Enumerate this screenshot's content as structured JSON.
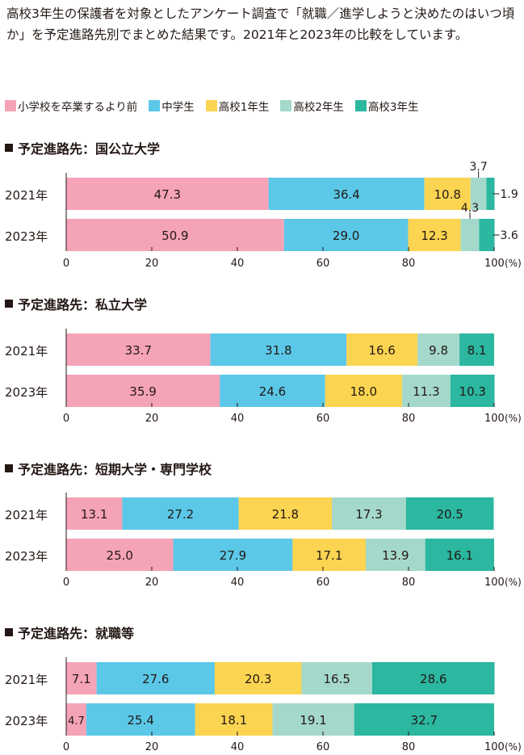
{
  "intro": "高校3年生の保護者を対象としたアンケート調査で「就職／進学しようと決めたのはいつ頃か」を予定進路先別でまとめた結果です。2021年と2023年の比較をしています。",
  "legend": [
    {
      "name": "小学校を卒業するより前",
      "color": "#f5a3b7"
    },
    {
      "name": "中学生",
      "color": "#5bc8e8"
    },
    {
      "name": "高校1年生",
      "color": "#fbd451"
    },
    {
      "name": "高校2年生",
      "color": "#a4d8cb"
    },
    {
      "name": "高校3年生",
      "color": "#2bb7a0"
    }
  ],
  "axis": {
    "ticks": [
      0,
      20,
      40,
      60,
      80,
      100
    ],
    "unit": "(%)",
    "xlim": [
      0,
      100
    ]
  },
  "chart_data": [
    {
      "type": "bar",
      "stacked": true,
      "orientation": "horizontal",
      "title": "予定進路先：国公立大学",
      "categories": [
        "2021年",
        "2023年"
      ],
      "series": [
        {
          "name": "小学校を卒業するより前",
          "values": [
            47.3,
            50.9
          ]
        },
        {
          "name": "中学生",
          "values": [
            36.4,
            29.0
          ]
        },
        {
          "name": "高校1年生",
          "values": [
            10.8,
            12.3
          ]
        },
        {
          "name": "高校2年生",
          "values": [
            3.7,
            4.3
          ]
        },
        {
          "name": "高校3年生",
          "values": [
            1.9,
            3.6
          ]
        }
      ],
      "labels": [
        [
          "47.3",
          "36.4",
          "10.8",
          "3.7",
          "1.9"
        ],
        [
          "50.9",
          "29.0",
          "12.3",
          "4.3",
          "3.6"
        ]
      ]
    },
    {
      "type": "bar",
      "stacked": true,
      "orientation": "horizontal",
      "title": "予定進路先：私立大学",
      "categories": [
        "2021年",
        "2023年"
      ],
      "series": [
        {
          "name": "小学校を卒業するより前",
          "values": [
            33.7,
            35.9
          ]
        },
        {
          "name": "中学生",
          "values": [
            31.8,
            24.6
          ]
        },
        {
          "name": "高校1年生",
          "values": [
            16.6,
            18.0
          ]
        },
        {
          "name": "高校2年生",
          "values": [
            9.8,
            11.3
          ]
        },
        {
          "name": "高校3年生",
          "values": [
            8.1,
            10.3
          ]
        }
      ],
      "labels": [
        [
          "33.7",
          "31.8",
          "16.6",
          "9.8",
          "8.1"
        ],
        [
          "35.9",
          "24.6",
          "18.0",
          "11.3",
          "10.3"
        ]
      ]
    },
    {
      "type": "bar",
      "stacked": true,
      "orientation": "horizontal",
      "title": "予定進路先：短期大学・専門学校",
      "categories": [
        "2021年",
        "2023年"
      ],
      "series": [
        {
          "name": "小学校を卒業するより前",
          "values": [
            13.1,
            25.0
          ]
        },
        {
          "name": "中学生",
          "values": [
            27.2,
            27.9
          ]
        },
        {
          "name": "高校1年生",
          "values": [
            21.8,
            17.1
          ]
        },
        {
          "name": "高校2年生",
          "values": [
            17.3,
            13.9
          ]
        },
        {
          "name": "高校3年生",
          "values": [
            20.5,
            16.1
          ]
        }
      ],
      "labels": [
        [
          "13.1",
          "27.2",
          "21.8",
          "17.3",
          "20.5"
        ],
        [
          "25.0",
          "27.9",
          "17.1",
          "13.9",
          "16.1"
        ]
      ]
    },
    {
      "type": "bar",
      "stacked": true,
      "orientation": "horizontal",
      "title": "予定進路先：就職等",
      "categories": [
        "2021年",
        "2023年"
      ],
      "series": [
        {
          "name": "小学校を卒業するより前",
          "values": [
            7.1,
            4.7
          ]
        },
        {
          "name": "中学生",
          "values": [
            27.6,
            25.4
          ]
        },
        {
          "name": "高校1年生",
          "values": [
            20.3,
            18.1
          ]
        },
        {
          "name": "高校2年生",
          "values": [
            16.5,
            19.1
          ]
        },
        {
          "name": "高校3年生",
          "values": [
            28.6,
            32.7
          ]
        }
      ],
      "labels": [
        [
          "7.1",
          "27.6",
          "20.3",
          "16.5",
          "28.6"
        ],
        [
          "4.7",
          "25.4",
          "18.1",
          "19.1",
          "32.7"
        ]
      ]
    }
  ]
}
